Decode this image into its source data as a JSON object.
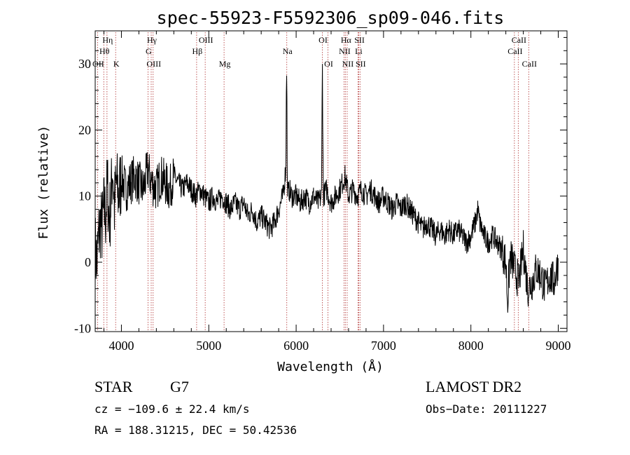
{
  "chart_data": {
    "type": "line",
    "title": "spec-55923-F5592306_sp09-046.fits",
    "xlabel": "Wavelength (Å)",
    "ylabel": "Flux (relative)",
    "xlim": [
      3700,
      9100
    ],
    "ylim": [
      -10.5,
      35
    ],
    "x_ticks": [
      4000,
      5000,
      6000,
      7000,
      8000,
      9000
    ],
    "y_ticks": [
      -10,
      0,
      10,
      20,
      30
    ],
    "grid": false,
    "colors": {
      "spectrum": "#000000",
      "lines": "#b03030"
    },
    "spectrum_anchors": {
      "x": [
        3700,
        3720,
        3740,
        3760,
        3780,
        3800,
        3820,
        3840,
        3860,
        3880,
        3900,
        3920,
        3940,
        3970,
        4000,
        4050,
        4100,
        4150,
        4200,
        4250,
        4300,
        4350,
        4400,
        4450,
        4500,
        4550,
        4600,
        4650,
        4700,
        4750,
        4800,
        4850,
        4900,
        4950,
        5000,
        5050,
        5100,
        5150,
        5200,
        5250,
        5300,
        5350,
        5400,
        5450,
        5500,
        5550,
        5600,
        5650,
        5700,
        5750,
        5800,
        5850,
        5880,
        5890,
        5895,
        5900,
        5910,
        5920,
        5950,
        6000,
        6050,
        6100,
        6150,
        6200,
        6250,
        6290,
        6300,
        6310,
        6350,
        6400,
        6450,
        6500,
        6560,
        6600,
        6650,
        6700,
        6750,
        6800,
        6850,
        6900,
        6950,
        7000,
        7050,
        7100,
        7150,
        7200,
        7250,
        7300,
        7350,
        7400,
        7450,
        7500,
        7550,
        7600,
        7650,
        7700,
        7750,
        7800,
        7850,
        7900,
        7950,
        8000,
        8050,
        8080,
        8100,
        8150,
        8200,
        8250,
        8300,
        8350,
        8400,
        8420,
        8450,
        8500,
        8550,
        8600,
        8650,
        8700,
        8750,
        8800,
        8850,
        8900,
        8950,
        9000
      ],
      "y": [
        2,
        0,
        4,
        6,
        5,
        8,
        7,
        12,
        6,
        9,
        15,
        8,
        12,
        10,
        13,
        11,
        12,
        13,
        12,
        11,
        14,
        12,
        11,
        13,
        12,
        11,
        13,
        12,
        11,
        12,
        11,
        10,
        11,
        10,
        9,
        10,
        9,
        10,
        9,
        8,
        9,
        8,
        9,
        7,
        8,
        6,
        7,
        6,
        5,
        6,
        8,
        10,
        14,
        20,
        16,
        12,
        10,
        11,
        10,
        10,
        9,
        10,
        9,
        10,
        9,
        10,
        30,
        10,
        11,
        9,
        10,
        11,
        13,
        10,
        11,
        10,
        11,
        10,
        11,
        10,
        9,
        10,
        9,
        8,
        9,
        8,
        9,
        8,
        7,
        6,
        5,
        6,
        5,
        4,
        5,
        4,
        5,
        4,
        5,
        4,
        3,
        4,
        6,
        8,
        6,
        4,
        3,
        4,
        3,
        2,
        0,
        -6,
        1,
        -1,
        -3,
        2,
        -4,
        -3,
        -1,
        -2,
        -4,
        -2,
        -3,
        0
      ]
    },
    "spectral_lines": [
      {
        "label": "Hη",
        "wavelength": 3835,
        "row": 1
      },
      {
        "label": "Hθ",
        "wavelength": 3798,
        "row": 2
      },
      {
        "label": "OII",
        "wavelength": 3727,
        "row": 3
      },
      {
        "label": "K",
        "wavelength": 3934,
        "row": 3
      },
      {
        "label": "Hγ",
        "wavelength": 4341,
        "row": 1
      },
      {
        "label": "G",
        "wavelength": 4304,
        "row": 2
      },
      {
        "label": "OIII",
        "wavelength": 4363,
        "row": 3
      },
      {
        "label": "OIII",
        "wavelength": 4959,
        "row": 1
      },
      {
        "label": "Hβ",
        "wavelength": 4861,
        "row": 2
      },
      {
        "label": "Mg",
        "wavelength": 5175,
        "row": 3
      },
      {
        "label": "Na",
        "wavelength": 5893,
        "row": 2
      },
      {
        "label": "OI",
        "wavelength": 6300,
        "row": 1
      },
      {
        "label": "OI",
        "wavelength": 6364,
        "row": 3
      },
      {
        "label": "Hα",
        "wavelength": 6563,
        "row": 1
      },
      {
        "label": "SII",
        "wavelength": 6717,
        "row": 1
      },
      {
        "label": "NII",
        "wavelength": 6548,
        "row": 2
      },
      {
        "label": "Li",
        "wavelength": 6708,
        "row": 2
      },
      {
        "label": "NII",
        "wavelength": 6584,
        "row": 3
      },
      {
        "label": "SII",
        "wavelength": 6731,
        "row": 3
      },
      {
        "label": "CaII",
        "wavelength": 8542,
        "row": 1
      },
      {
        "label": "CaII",
        "wavelength": 8498,
        "row": 2
      },
      {
        "label": "CaII",
        "wavelength": 8662,
        "row": 3
      }
    ]
  },
  "info": {
    "object_class": "STAR",
    "subclass": "G7",
    "survey": "LAMOST DR2",
    "redshift": "cz = −109.6 ± 22.4 km/s",
    "obs_date": "Obs−Date: 20111227",
    "coords": "RA = 188.31215, DEC =  50.42536"
  }
}
